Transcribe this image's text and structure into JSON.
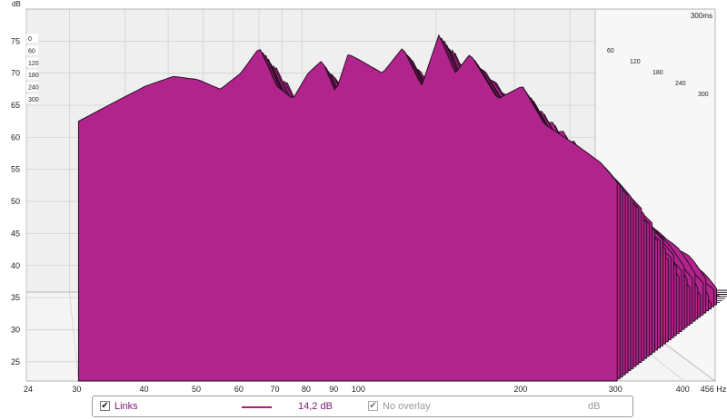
{
  "chart_data": {
    "type": "area",
    "y_unit": "dB",
    "time_unit_label": "300ms",
    "yticks": [
      25,
      30,
      35,
      40,
      45,
      50,
      55,
      60,
      65,
      70,
      75
    ],
    "ylim": [
      22,
      80
    ],
    "xticks": [
      {
        "value": 24,
        "label": "24"
      },
      {
        "value": 30,
        "label": "30"
      },
      {
        "value": 40,
        "label": "40"
      },
      {
        "value": 50,
        "label": "50"
      },
      {
        "value": 60,
        "label": "60"
      },
      {
        "value": 70,
        "label": "70"
      },
      {
        "value": 80,
        "label": "80"
      },
      {
        "value": 90,
        "label": "90"
      },
      {
        "value": 100,
        "label": "100"
      },
      {
        "value": 200,
        "label": "200"
      },
      {
        "value": 300,
        "label": "300"
      },
      {
        "value": 400,
        "label": "400"
      },
      {
        "value": 456,
        "label": "456 Hz"
      }
    ],
    "xlim": [
      24,
      456
    ],
    "time_slices_ms": [
      0,
      60,
      120,
      180,
      240,
      300
    ],
    "time_labels_left": [
      "0",
      "60",
      "120",
      "180",
      "240",
      "300"
    ],
    "time_labels_right": [
      "60",
      "120",
      "180",
      "240",
      "300"
    ],
    "front_curve": {
      "x": [
        30,
        35,
        40,
        45,
        50,
        55,
        60,
        65,
        70,
        75,
        80,
        85,
        90,
        95,
        100,
        110,
        120,
        130,
        140,
        150,
        160,
        180,
        200,
        220,
        250,
        280,
        300
      ],
      "y": [
        62.5,
        65.5,
        68,
        69.5,
        69,
        67.5,
        70,
        74,
        68,
        66,
        70,
        72,
        67,
        73,
        72,
        70,
        74,
        68,
        76,
        70,
        73,
        66,
        68,
        62,
        59,
        56,
        53
      ]
    },
    "series": [
      {
        "name": "Links",
        "color": "#b0248c",
        "value": "14,2 dB"
      }
    ]
  },
  "legend": {
    "links_label": "Links",
    "links_checked": "✔",
    "value": "14,2 dB",
    "overlay_label": "No overlay",
    "overlay_checked": "✔",
    "unit": "dB"
  },
  "colors": {
    "fill": "#b0248c",
    "line": "#1e0a19",
    "grid": "#c8c8c8",
    "wall": "#efefef"
  }
}
